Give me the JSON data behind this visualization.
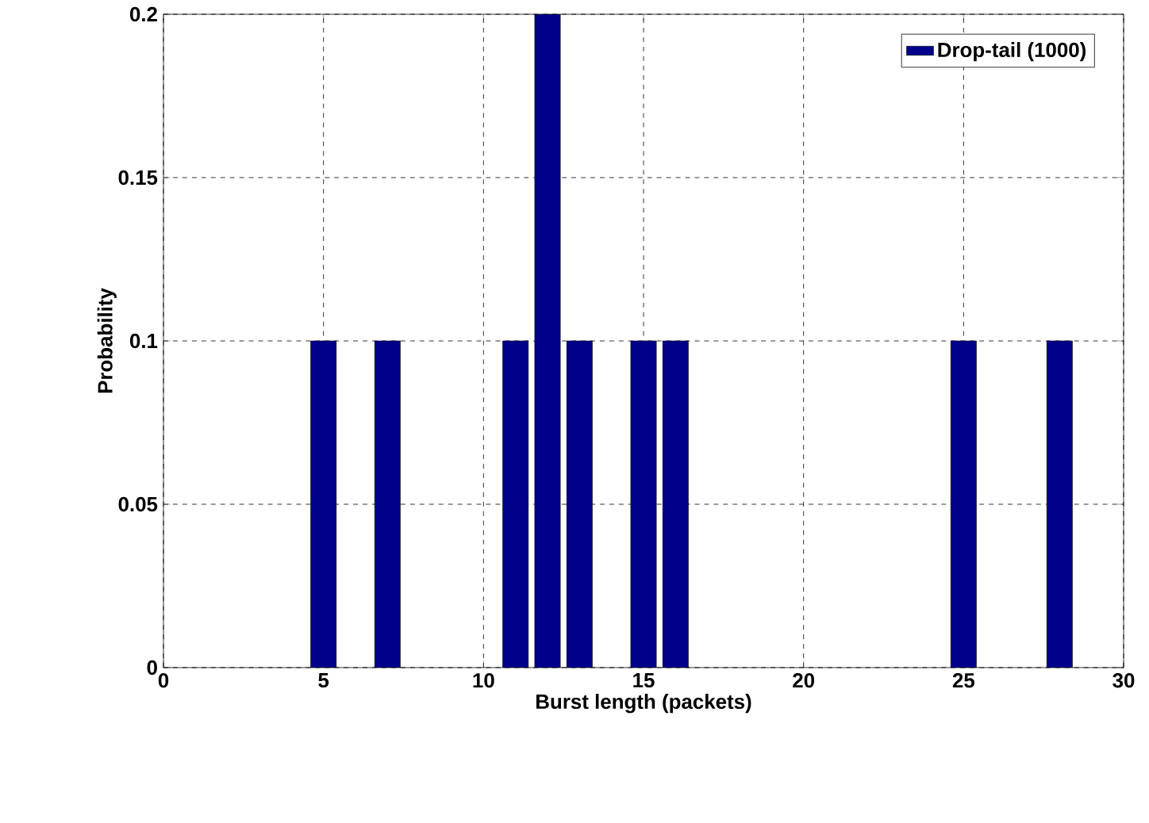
{
  "chart_data": {
    "type": "bar",
    "xlabel": "Burst length (packets)",
    "ylabel": "Probability",
    "x": [
      5,
      7,
      11,
      12,
      13,
      15,
      16,
      25,
      28
    ],
    "series": [
      {
        "name": "Drop-tail (1000)",
        "color": "#00008b",
        "values": [
          0.1,
          0.1,
          0.1,
          0.2,
          0.1,
          0.1,
          0.1,
          0.1,
          0.1
        ]
      }
    ],
    "xlim": [
      0,
      30
    ],
    "xticks": [
      0,
      5,
      10,
      15,
      20,
      25,
      30
    ],
    "ylim": [
      0,
      0.2
    ],
    "yticks": [
      0,
      0.05,
      0.1,
      0.15,
      0.2
    ],
    "grid": true,
    "legend": "top right"
  }
}
